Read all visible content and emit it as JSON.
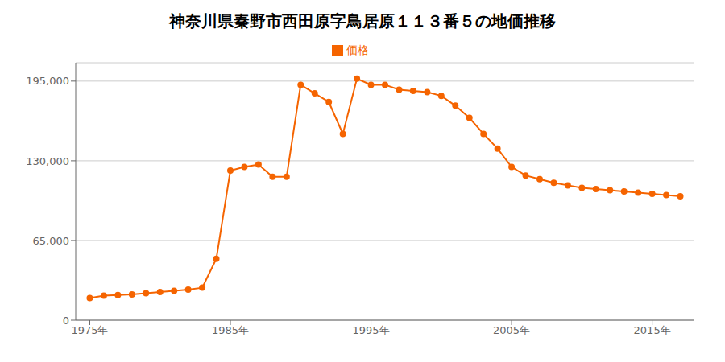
{
  "chart_data": {
    "type": "line",
    "title": "神奈川県秦野市西田原字鳥居原１１３番５の地価推移",
    "x": [
      1975,
      1976,
      1977,
      1978,
      1979,
      1980,
      1981,
      1982,
      1983,
      1984,
      1985,
      1986,
      1987,
      1988,
      1989,
      1990,
      1991,
      1992,
      1993,
      1994,
      1995,
      1996,
      1997,
      1998,
      1999,
      2000,
      2001,
      2002,
      2003,
      2004,
      2005,
      2006,
      2007,
      2008,
      2009,
      2010,
      2011,
      2012,
      2013,
      2014,
      2015,
      2016,
      2017
    ],
    "series": [
      {
        "name": "価格",
        "color": "#f56400",
        "marker": "circle",
        "line_style": "solid",
        "values": [
          18000,
          20000,
          20500,
          21000,
          22000,
          23000,
          24000,
          25000,
          26500,
          50000,
          122000,
          125000,
          127000,
          117000,
          117000,
          192000,
          185000,
          178000,
          152000,
          197000,
          192000,
          192000,
          188000,
          187000,
          186000,
          183000,
          175000,
          165000,
          152000,
          140000,
          125000,
          118000,
          115000,
          112000,
          110000,
          108000,
          107000,
          106000,
          105000,
          104000,
          103000,
          102000,
          101000
        ]
      }
    ],
    "xlim": [
      1974,
      2018
    ],
    "xticks": [
      {
        "value": 1975,
        "label": "1975年"
      },
      {
        "value": 1985,
        "label": "1985年"
      },
      {
        "value": 1995,
        "label": "1995年"
      },
      {
        "value": 2005,
        "label": "2005年"
      },
      {
        "value": 2015,
        "label": "2015年"
      }
    ],
    "ylim": [
      0,
      210000
    ],
    "yticks": [
      0,
      {
        "value": 65000,
        "label": "65,000"
      },
      {
        "value": 130000,
        "label": "130,000"
      },
      {
        "value": 195000,
        "label": "195,000"
      }
    ],
    "grid": true,
    "legend": "top"
  }
}
